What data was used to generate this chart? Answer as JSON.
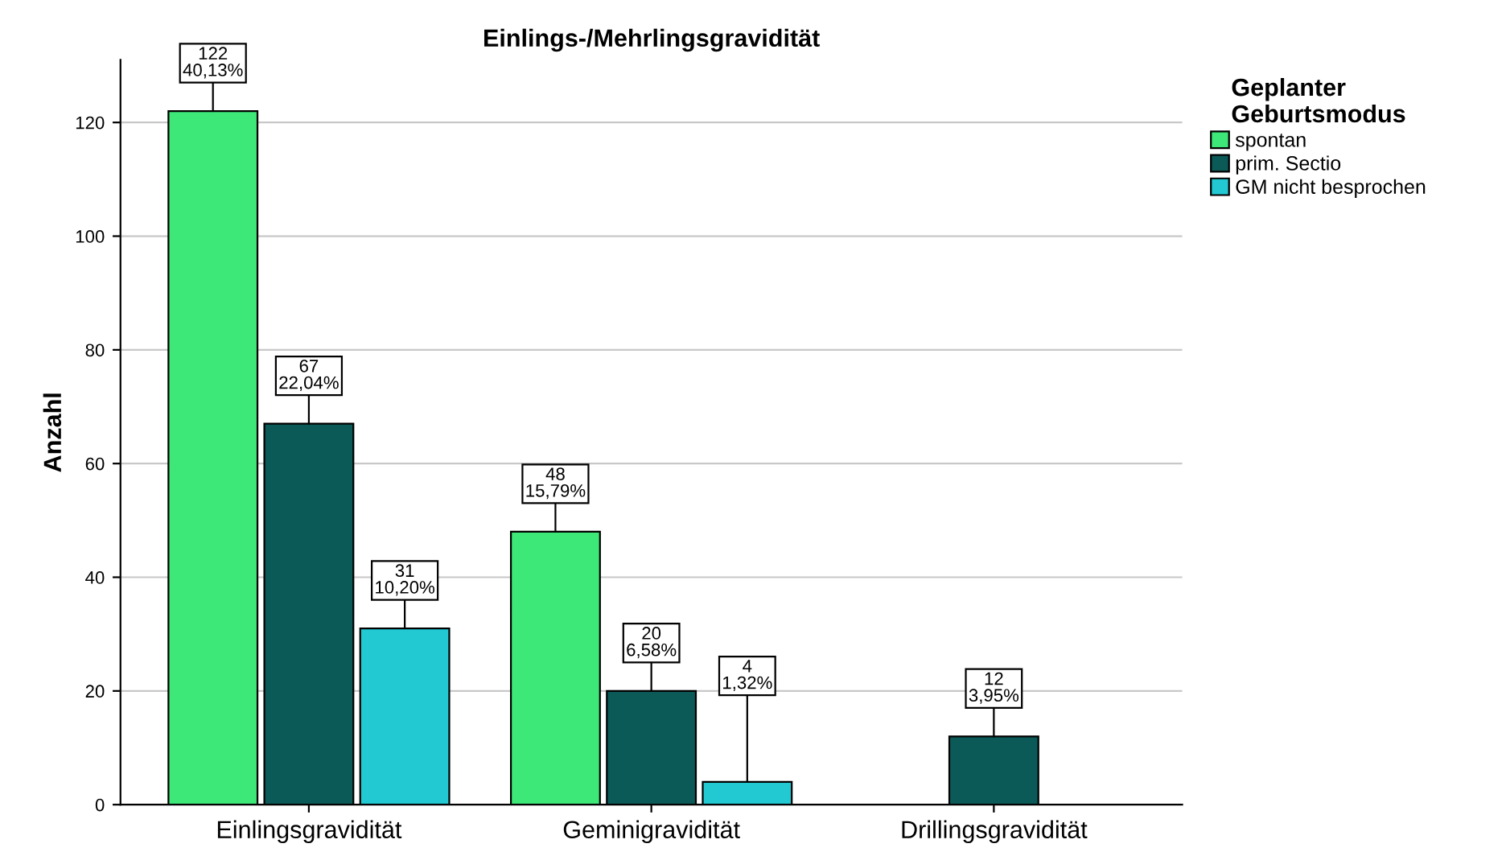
{
  "chart_data": {
    "type": "bar",
    "title": "Einlings-/Mehrlingsgravidität",
    "ylabel": "Anzahl",
    "legend_title": "Geplanter\nGeburtsmodus",
    "categories": [
      "Einlingsgravidität",
      "Geminigravidität",
      "Drillingsgravidität"
    ],
    "series": [
      {
        "name": "spontan",
        "color": "#3ee878",
        "values": [
          122,
          48,
          null
        ],
        "value_labels": [
          "122\n40,13%",
          "48\n15,79%",
          null
        ]
      },
      {
        "name": "prim. Sectio",
        "color": "#0b5a58",
        "values": [
          67,
          20,
          12
        ],
        "value_labels": [
          "67\n22,04%",
          "20\n6,58%",
          "12\n3,95%"
        ]
      },
      {
        "name": "GM nicht besprochen",
        "color": "#22c9d2",
        "values": [
          31,
          4,
          null
        ],
        "value_labels": [
          "31\n10,20%",
          "4\n1,32%",
          null
        ]
      }
    ],
    "ylim": [
      0,
      131
    ],
    "yticks": [
      0,
      20,
      40,
      60,
      80,
      100,
      120
    ],
    "grid": "y",
    "legend": "right"
  }
}
